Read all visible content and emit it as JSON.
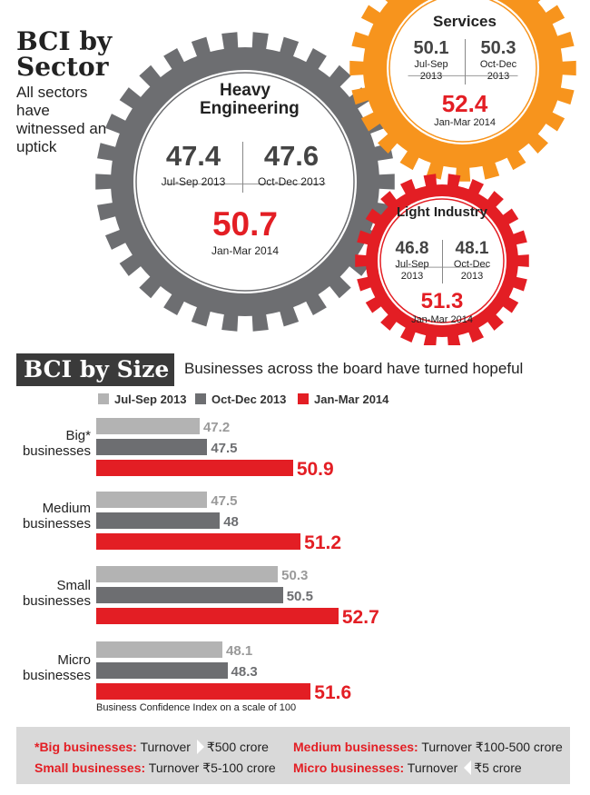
{
  "sector": {
    "title": "BCI by Sector",
    "subtitle": "All sectors have witnessed an uptick",
    "gears": [
      {
        "name": "Heavy Engineering",
        "v1": "47.4",
        "l1": "Jul-Sep 2013",
        "v2": "47.6",
        "l2": "Oct-Dec 2013",
        "v3": "50.7",
        "l3": "Jan-Mar 2014",
        "color": "#6d6e71"
      },
      {
        "name": "Services",
        "v1": "50.1",
        "l1": "Jul-Sep 2013",
        "v2": "50.3",
        "l2": "Oct-Dec 2013",
        "v3": "52.4",
        "l3": "Jan-Mar 2014",
        "color": "#f7941d"
      },
      {
        "name": "Light Industry",
        "v1": "46.8",
        "l1": "Jul-Sep 2013",
        "v2": "48.1",
        "l2": "Oct-Dec 2013",
        "v3": "51.3",
        "l3": "Jan-Mar 2014",
        "color": "#e31e24"
      }
    ]
  },
  "size": {
    "title": "BCI by Size",
    "subtitle": "Businesses across the board have turned hopeful",
    "scale_note": "Business Confidence Index on a scale of 100"
  },
  "chart_data": {
    "type": "bar",
    "orientation": "horizontal",
    "categories": [
      "Big* businesses",
      "Medium businesses",
      "Small businesses",
      "Micro businesses"
    ],
    "series": [
      {
        "name": "Jul-Sep 2013",
        "values": [
          47.2,
          47.5,
          50.3,
          48.1
        ],
        "color": "#b3b3b3"
      },
      {
        "name": "Oct-Dec 2013",
        "values": [
          47.5,
          48,
          50.5,
          48.3
        ],
        "color": "#6d6e71"
      },
      {
        "name": "Jan-Mar 2014",
        "values": [
          50.9,
          51.2,
          52.7,
          51.6
        ],
        "color": "#e31e24"
      }
    ],
    "value_labels": [
      [
        "47.2",
        "47.5",
        "50.3",
        "48.1"
      ],
      [
        "47.5",
        "48",
        "50.5",
        "48.3"
      ],
      [
        "50.9",
        "51.2",
        "52.7",
        "51.6"
      ]
    ],
    "legend_position": "top",
    "grid": false,
    "xlim": [
      40,
      55
    ]
  },
  "footnotes": {
    "big_label": "*Big businesses:",
    "big_text": " Turnover ",
    "big_value": "₹500 crore",
    "medium_label": "Medium businesses:",
    "medium_text": " Turnover ₹100-500 crore",
    "small_label": "Small businesses:",
    "small_text": " Turnover ₹5-100 crore",
    "micro_label": "Micro businesses:",
    "micro_text": " Turnover ",
    "micro_value": "₹5 crore"
  }
}
